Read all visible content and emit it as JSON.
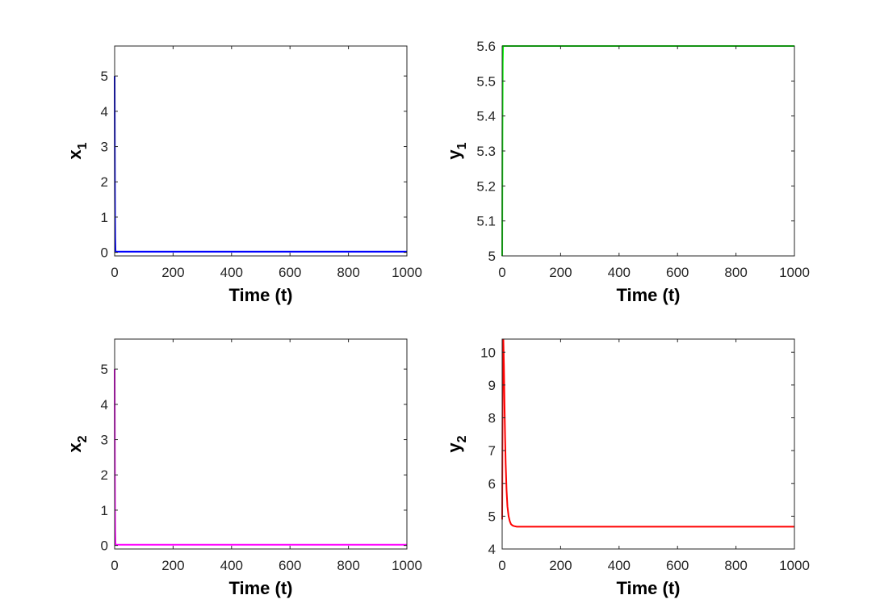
{
  "chart_data": [
    {
      "type": "line",
      "xlabel": "Time (t)",
      "ylabel": {
        "base": "x",
        "sub": "1"
      },
      "xlim": [
        0,
        1000
      ],
      "ylim": [
        -0.1,
        5.85
      ],
      "xticks": [
        0,
        200,
        400,
        600,
        800,
        1000
      ],
      "yticks": [
        0,
        1,
        2,
        3,
        4,
        5
      ],
      "grid": false,
      "series": [
        {
          "color": "#0000ff",
          "x": [
            0,
            0.5,
            1,
            1.5,
            2,
            3,
            1000
          ],
          "y": [
            5,
            3.2,
            1.8,
            0.9,
            0.4,
            0.02,
            0.02
          ]
        }
      ]
    },
    {
      "type": "line",
      "xlabel": "Time (t)",
      "ylabel": {
        "base": "y",
        "sub": "1"
      },
      "xlim": [
        0,
        1000
      ],
      "ylim": [
        5.0,
        5.6
      ],
      "xticks": [
        0,
        200,
        400,
        600,
        800,
        1000
      ],
      "yticks": [
        5,
        5.1,
        5.2,
        5.3,
        5.4,
        5.5,
        5.6
      ],
      "grid": false,
      "series": [
        {
          "color": "#00ff00",
          "x": [
            0,
            1,
            2,
            3,
            1000
          ],
          "y": [
            5.0,
            5.35,
            5.55,
            5.6,
            5.6
          ]
        }
      ]
    },
    {
      "type": "line",
      "xlabel": "Time (t)",
      "ylabel": {
        "base": "x",
        "sub": "2"
      },
      "xlim": [
        0,
        1000
      ],
      "ylim": [
        -0.1,
        5.85
      ],
      "xticks": [
        0,
        200,
        400,
        600,
        800,
        1000
      ],
      "yticks": [
        0,
        1,
        2,
        3,
        4,
        5
      ],
      "grid": false,
      "series": [
        {
          "color": "#ff00ff",
          "x": [
            0,
            0.5,
            1,
            1.5,
            2,
            3,
            1000
          ],
          "y": [
            5,
            3.2,
            1.8,
            0.9,
            0.4,
            0.02,
            0.02
          ]
        }
      ]
    },
    {
      "type": "line",
      "xlabel": "Time (t)",
      "ylabel": {
        "base": "y",
        "sub": "2"
      },
      "xlim": [
        0,
        1000
      ],
      "ylim": [
        4,
        10.4
      ],
      "xticks": [
        0,
        200,
        400,
        600,
        800,
        1000
      ],
      "yticks": [
        4,
        5,
        6,
        7,
        8,
        9,
        10
      ],
      "grid": false,
      "series": [
        {
          "color": "#ff0000",
          "x": [
            0,
            2,
            4,
            6,
            8,
            10,
            12,
            15,
            18,
            22,
            26,
            30,
            35,
            40,
            50,
            60,
            80,
            100,
            1000
          ],
          "y": [
            4.9,
            9.8,
            10.4,
            9.6,
            8.4,
            7.4,
            6.6,
            5.8,
            5.3,
            5.0,
            4.85,
            4.76,
            4.72,
            4.7,
            4.68,
            4.68,
            4.68,
            4.68,
            4.68
          ]
        }
      ]
    }
  ]
}
